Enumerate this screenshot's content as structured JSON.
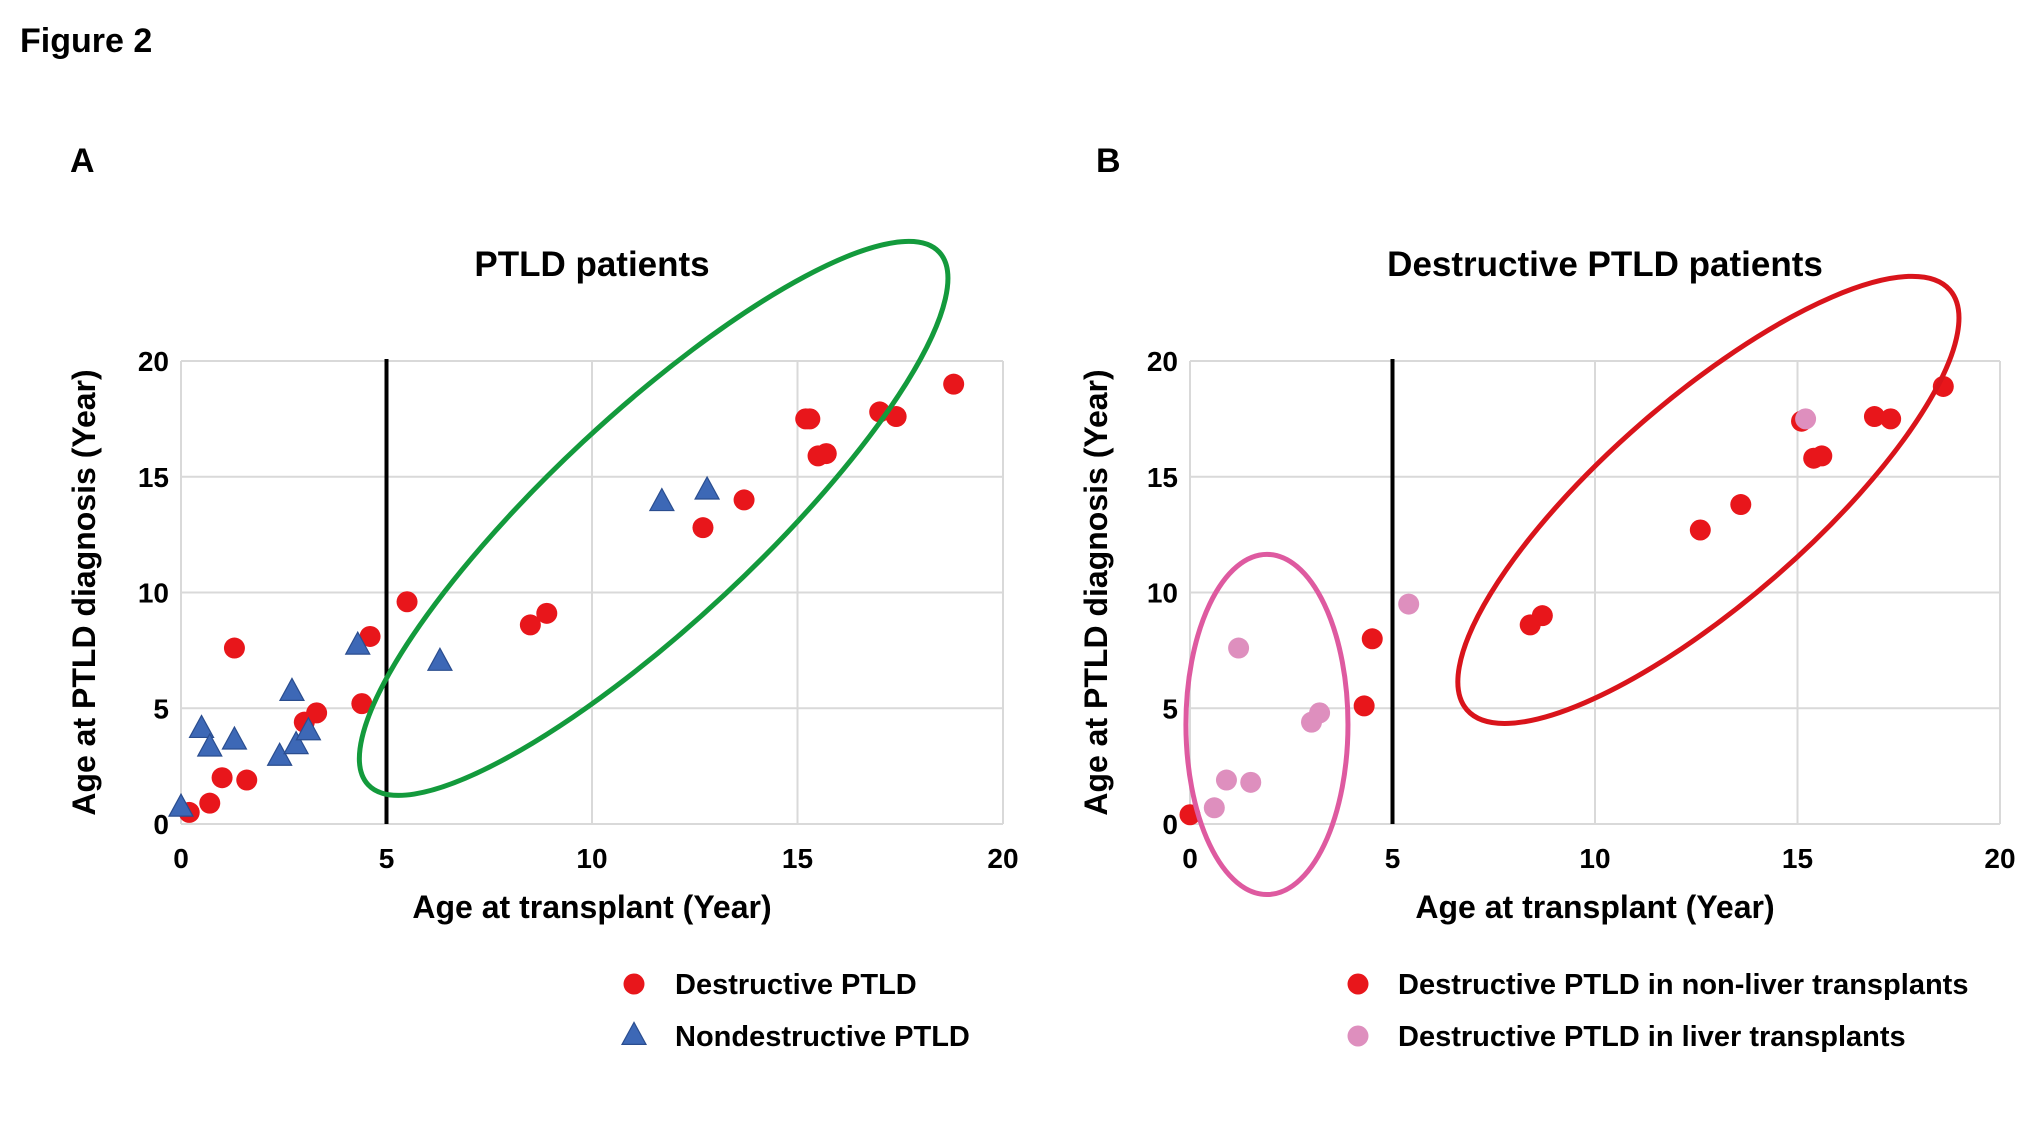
{
  "figure_title": "Figure 2",
  "colors": {
    "destructive": "#e8161b",
    "nondestructive": "#3d68b6",
    "liver": "#de8fbe",
    "ellipse_green": "#139a3c",
    "ellipse_red": "#d9141b",
    "ellipse_pink": "#de5aa0",
    "grid": "#d9d9d9",
    "divider": "#000000"
  },
  "chart_data": [
    {
      "panel_label": "A",
      "type": "scatter",
      "title": "PTLD patients",
      "xlabel": "Age at transplant (Year)",
      "ylabel": "Age at PTLD diagnosis (Year)",
      "xlim": [
        0,
        20
      ],
      "ylim": [
        0,
        20
      ],
      "xticks": [
        "0",
        "5",
        "10",
        "15",
        "20"
      ],
      "yticks": [
        "0",
        "5",
        "10",
        "15",
        "20"
      ],
      "grid": true,
      "divider_x": 5,
      "legend_position": "bottom",
      "series": [
        {
          "name": "Destructive PTLD",
          "marker": "circle",
          "color_key": "destructive",
          "points": [
            [
              0.2,
              0.5
            ],
            [
              0.7,
              0.9
            ],
            [
              1.0,
              2.0
            ],
            [
              1.3,
              7.6
            ],
            [
              1.6,
              1.9
            ],
            [
              3.0,
              4.4
            ],
            [
              3.3,
              4.8
            ],
            [
              4.4,
              5.2
            ],
            [
              4.6,
              8.1
            ],
            [
              5.5,
              9.6
            ],
            [
              8.5,
              8.6
            ],
            [
              8.9,
              9.1
            ],
            [
              12.7,
              12.8
            ],
            [
              13.7,
              14.0
            ],
            [
              15.2,
              17.5
            ],
            [
              15.3,
              17.5
            ],
            [
              15.5,
              15.9
            ],
            [
              15.7,
              16.0
            ],
            [
              17.0,
              17.8
            ],
            [
              17.4,
              17.6
            ],
            [
              18.8,
              19.0
            ]
          ]
        },
        {
          "name": "Nondestructive PTLD",
          "marker": "triangle",
          "color_key": "nondestructive",
          "points": [
            [
              0.0,
              0.7
            ],
            [
              0.5,
              4.1
            ],
            [
              0.7,
              3.3
            ],
            [
              1.3,
              3.6
            ],
            [
              2.4,
              2.9
            ],
            [
              2.8,
              3.4
            ],
            [
              2.7,
              5.7
            ],
            [
              3.1,
              4.0
            ],
            [
              4.3,
              7.7
            ],
            [
              6.3,
              7.0
            ],
            [
              11.7,
              13.9
            ],
            [
              12.8,
              14.4
            ]
          ]
        }
      ],
      "ellipses": [
        {
          "cx": 11.5,
          "cy": 13.2,
          "rx": 9.5,
          "ry": 4.5,
          "angle_deg": 43.0,
          "color_key": "ellipse_green"
        }
      ]
    },
    {
      "panel_label": "B",
      "type": "scatter",
      "title": "Destructive PTLD patients",
      "xlabel": "Age at transplant (Year)",
      "ylabel": "Age at PTLD diagnosis (Year)",
      "xlim": [
        0,
        20
      ],
      "ylim": [
        0,
        20
      ],
      "xticks": [
        "0",
        "5",
        "10",
        "15",
        "20"
      ],
      "yticks": [
        "0",
        "5",
        "10",
        "15",
        "20"
      ],
      "grid": true,
      "divider_x": 5,
      "legend_position": "bottom",
      "series": [
        {
          "name": "Destructive PTLD in non-liver transplants",
          "marker": "circle",
          "color_key": "destructive",
          "points": [
            [
              0.0,
              0.4
            ],
            [
              4.3,
              5.1
            ],
            [
              4.5,
              8.0
            ],
            [
              8.4,
              8.6
            ],
            [
              8.7,
              9.0
            ],
            [
              12.6,
              12.7
            ],
            [
              13.6,
              13.8
            ],
            [
              15.1,
              17.4
            ],
            [
              15.4,
              15.8
            ],
            [
              15.6,
              15.9
            ],
            [
              16.9,
              17.6
            ],
            [
              17.3,
              17.5
            ],
            [
              18.6,
              18.9
            ]
          ]
        },
        {
          "name": "Destructive PTLD in liver transplants",
          "marker": "circle",
          "color_key": "liver",
          "points": [
            [
              0.6,
              0.7
            ],
            [
              0.9,
              1.9
            ],
            [
              1.2,
              7.6
            ],
            [
              1.5,
              1.8
            ],
            [
              3.0,
              4.4
            ],
            [
              3.2,
              4.8
            ],
            [
              5.4,
              9.5
            ],
            [
              15.2,
              17.5
            ]
          ]
        }
      ],
      "ellipses": [
        {
          "cx": 1.9,
          "cy": 4.3,
          "rx": 4.2,
          "ry": 3.5,
          "angle_deg": 90.0,
          "color_key": "ellipse_pink"
        },
        {
          "cx": 12.8,
          "cy": 14.0,
          "rx": 7.9,
          "ry": 4.4,
          "angle_deg": 41.0,
          "color_key": "ellipse_red"
        }
      ]
    }
  ]
}
